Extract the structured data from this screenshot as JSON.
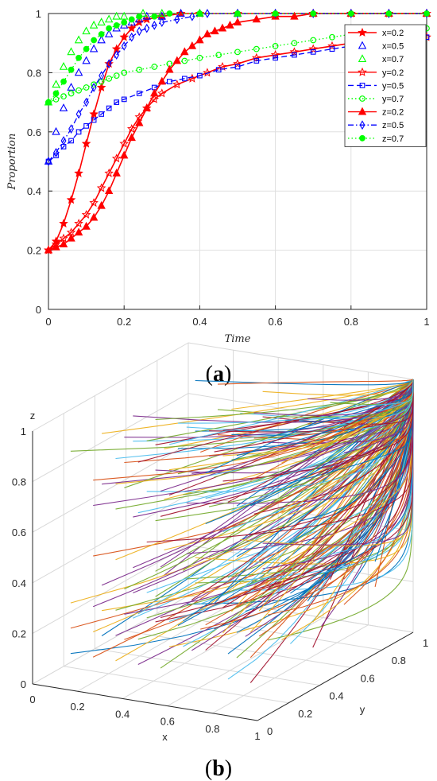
{
  "chart_data": [
    {
      "type": "line",
      "panel": "a",
      "xlabel": "Time",
      "ylabel": "Proportion",
      "xlim": [
        0,
        1
      ],
      "ylim": [
        0,
        1
      ],
      "xticks": [
        "0",
        "0.2",
        "0.4",
        "0.6",
        "0.8",
        "1"
      ],
      "yticks": [
        "0",
        "0.2",
        "0.4",
        "0.6",
        "0.8",
        "1"
      ],
      "grid": true,
      "legend_position": "top-right",
      "series": [
        {
          "name": "x=0.2",
          "color": "#ff0000",
          "line": "solid",
          "marker": "star-filled",
          "points": [
            [
              0,
              0.2
            ],
            [
              0.02,
              0.23
            ],
            [
              0.04,
              0.29
            ],
            [
              0.06,
              0.37
            ],
            [
              0.08,
              0.46
            ],
            [
              0.1,
              0.56
            ],
            [
              0.12,
              0.66
            ],
            [
              0.14,
              0.75
            ],
            [
              0.16,
              0.83
            ],
            [
              0.18,
              0.88
            ],
            [
              0.2,
              0.92
            ],
            [
              0.22,
              0.95
            ],
            [
              0.24,
              0.97
            ],
            [
              0.26,
              0.98
            ],
            [
              0.3,
              0.99
            ],
            [
              0.35,
              1.0
            ],
            [
              0.4,
              1.0
            ],
            [
              0.5,
              1.0
            ],
            [
              0.6,
              1.0
            ],
            [
              0.7,
              1.0
            ],
            [
              0.8,
              1.0
            ],
            [
              0.9,
              1.0
            ],
            [
              1.0,
              1.0
            ]
          ]
        },
        {
          "name": "x=0.5",
          "color": "#0000ff",
          "line": "none",
          "marker": "triangle-open",
          "points": [
            [
              0,
              0.5
            ],
            [
              0.02,
              0.6
            ],
            [
              0.04,
              0.68
            ],
            [
              0.06,
              0.75
            ],
            [
              0.08,
              0.8
            ],
            [
              0.1,
              0.84
            ],
            [
              0.12,
              0.88
            ],
            [
              0.14,
              0.91
            ],
            [
              0.16,
              0.93
            ],
            [
              0.18,
              0.95
            ],
            [
              0.2,
              0.96
            ],
            [
              0.22,
              0.97
            ],
            [
              0.24,
              0.98
            ],
            [
              0.26,
              0.99
            ],
            [
              0.3,
              0.99
            ],
            [
              0.35,
              1.0
            ],
            [
              0.4,
              1.0
            ],
            [
              0.5,
              1.0
            ],
            [
              0.6,
              1.0
            ],
            [
              0.7,
              1.0
            ],
            [
              0.8,
              1.0
            ],
            [
              0.9,
              1.0
            ],
            [
              1.0,
              1.0
            ]
          ]
        },
        {
          "name": "x=0.7",
          "color": "#00ff00",
          "line": "none",
          "marker": "triangle-open",
          "points": [
            [
              0,
              0.7
            ],
            [
              0.02,
              0.76
            ],
            [
              0.04,
              0.82
            ],
            [
              0.06,
              0.87
            ],
            [
              0.08,
              0.91
            ],
            [
              0.1,
              0.94
            ],
            [
              0.12,
              0.96
            ],
            [
              0.14,
              0.97
            ],
            [
              0.16,
              0.98
            ],
            [
              0.18,
              0.99
            ],
            [
              0.2,
              0.99
            ],
            [
              0.25,
              1.0
            ],
            [
              0.3,
              1.0
            ],
            [
              0.4,
              1.0
            ],
            [
              0.5,
              1.0
            ],
            [
              0.6,
              1.0
            ],
            [
              0.7,
              1.0
            ],
            [
              0.8,
              1.0
            ],
            [
              0.9,
              1.0
            ],
            [
              1.0,
              1.0
            ]
          ]
        },
        {
          "name": "y=0.2",
          "color": "#ff0000",
          "line": "solid",
          "marker": "star",
          "points": [
            [
              0,
              0.2
            ],
            [
              0.02,
              0.22
            ],
            [
              0.04,
              0.24
            ],
            [
              0.06,
              0.26
            ],
            [
              0.08,
              0.29
            ],
            [
              0.1,
              0.32
            ],
            [
              0.12,
              0.36
            ],
            [
              0.14,
              0.41
            ],
            [
              0.16,
              0.46
            ],
            [
              0.18,
              0.51
            ],
            [
              0.2,
              0.56
            ],
            [
              0.22,
              0.61
            ],
            [
              0.24,
              0.65
            ],
            [
              0.26,
              0.68
            ],
            [
              0.28,
              0.71
            ],
            [
              0.3,
              0.73
            ],
            [
              0.34,
              0.76
            ],
            [
              0.38,
              0.78
            ],
            [
              0.42,
              0.8
            ],
            [
              0.46,
              0.82
            ],
            [
              0.5,
              0.83
            ],
            [
              0.55,
              0.85
            ],
            [
              0.6,
              0.86
            ],
            [
              0.65,
              0.87
            ],
            [
              0.7,
              0.88
            ],
            [
              0.75,
              0.89
            ],
            [
              0.8,
              0.9
            ],
            [
              0.85,
              0.91
            ],
            [
              0.9,
              0.91
            ],
            [
              0.95,
              0.92
            ],
            [
              1.0,
              0.92
            ]
          ]
        },
        {
          "name": "y=0.5",
          "color": "#0000ff",
          "line": "dashed",
          "marker": "square-open",
          "points": [
            [
              0,
              0.5
            ],
            [
              0.02,
              0.52
            ],
            [
              0.04,
              0.55
            ],
            [
              0.06,
              0.57
            ],
            [
              0.08,
              0.6
            ],
            [
              0.1,
              0.62
            ],
            [
              0.12,
              0.64
            ],
            [
              0.14,
              0.66
            ],
            [
              0.16,
              0.68
            ],
            [
              0.18,
              0.7
            ],
            [
              0.2,
              0.71
            ],
            [
              0.24,
              0.73
            ],
            [
              0.28,
              0.75
            ],
            [
              0.32,
              0.77
            ],
            [
              0.36,
              0.78
            ],
            [
              0.4,
              0.79
            ],
            [
              0.45,
              0.81
            ],
            [
              0.5,
              0.82
            ],
            [
              0.55,
              0.84
            ],
            [
              0.6,
              0.85
            ],
            [
              0.65,
              0.86
            ],
            [
              0.7,
              0.87
            ],
            [
              0.75,
              0.88
            ],
            [
              0.8,
              0.89
            ],
            [
              0.85,
              0.9
            ],
            [
              0.9,
              0.91
            ],
            [
              0.95,
              0.92
            ],
            [
              1.0,
              0.92
            ]
          ]
        },
        {
          "name": "y=0.7",
          "color": "#00ff00",
          "line": "dotted",
          "marker": "circle-open",
          "points": [
            [
              0,
              0.7
            ],
            [
              0.02,
              0.71
            ],
            [
              0.04,
              0.72
            ],
            [
              0.06,
              0.73
            ],
            [
              0.08,
              0.74
            ],
            [
              0.1,
              0.75
            ],
            [
              0.12,
              0.76
            ],
            [
              0.14,
              0.77
            ],
            [
              0.16,
              0.78
            ],
            [
              0.18,
              0.79
            ],
            [
              0.2,
              0.8
            ],
            [
              0.24,
              0.81
            ],
            [
              0.28,
              0.82
            ],
            [
              0.32,
              0.83
            ],
            [
              0.36,
              0.84
            ],
            [
              0.4,
              0.85
            ],
            [
              0.45,
              0.86
            ],
            [
              0.5,
              0.87
            ],
            [
              0.55,
              0.88
            ],
            [
              0.6,
              0.89
            ],
            [
              0.65,
              0.9
            ],
            [
              0.7,
              0.91
            ],
            [
              0.75,
              0.92
            ],
            [
              0.8,
              0.93
            ],
            [
              0.85,
              0.94
            ],
            [
              0.9,
              0.94
            ],
            [
              0.95,
              0.95
            ],
            [
              1.0,
              0.95
            ]
          ]
        },
        {
          "name": "z=0.2",
          "color": "#ff0000",
          "line": "solid",
          "marker": "triangle-filled",
          "points": [
            [
              0,
              0.2
            ],
            [
              0.02,
              0.21
            ],
            [
              0.04,
              0.22
            ],
            [
              0.06,
              0.24
            ],
            [
              0.08,
              0.26
            ],
            [
              0.1,
              0.28
            ],
            [
              0.12,
              0.31
            ],
            [
              0.14,
              0.35
            ],
            [
              0.16,
              0.4
            ],
            [
              0.18,
              0.46
            ],
            [
              0.2,
              0.52
            ],
            [
              0.22,
              0.58
            ],
            [
              0.24,
              0.63
            ],
            [
              0.26,
              0.68
            ],
            [
              0.28,
              0.73
            ],
            [
              0.3,
              0.77
            ],
            [
              0.32,
              0.81
            ],
            [
              0.34,
              0.84
            ],
            [
              0.36,
              0.87
            ],
            [
              0.38,
              0.89
            ],
            [
              0.4,
              0.91
            ],
            [
              0.42,
              0.93
            ],
            [
              0.44,
              0.94
            ],
            [
              0.46,
              0.95
            ],
            [
              0.48,
              0.96
            ],
            [
              0.5,
              0.97
            ],
            [
              0.55,
              0.98
            ],
            [
              0.6,
              0.99
            ],
            [
              0.65,
              0.99
            ],
            [
              0.7,
              1.0
            ],
            [
              0.8,
              1.0
            ],
            [
              0.9,
              1.0
            ],
            [
              1.0,
              1.0
            ]
          ]
        },
        {
          "name": "z=0.5",
          "color": "#0000ff",
          "line": "dashdot",
          "marker": "diamond-open",
          "points": [
            [
              0,
              0.5
            ],
            [
              0.02,
              0.53
            ],
            [
              0.04,
              0.57
            ],
            [
              0.06,
              0.61
            ],
            [
              0.08,
              0.66
            ],
            [
              0.1,
              0.7
            ],
            [
              0.12,
              0.75
            ],
            [
              0.14,
              0.79
            ],
            [
              0.16,
              0.83
            ],
            [
              0.18,
              0.86
            ],
            [
              0.2,
              0.89
            ],
            [
              0.22,
              0.92
            ],
            [
              0.24,
              0.94
            ],
            [
              0.26,
              0.95
            ],
            [
              0.28,
              0.96
            ],
            [
              0.3,
              0.97
            ],
            [
              0.34,
              0.98
            ],
            [
              0.38,
              0.99
            ],
            [
              0.42,
              1.0
            ],
            [
              0.5,
              1.0
            ],
            [
              0.6,
              1.0
            ],
            [
              0.7,
              1.0
            ],
            [
              0.8,
              1.0
            ],
            [
              0.9,
              1.0
            ],
            [
              1.0,
              1.0
            ]
          ]
        },
        {
          "name": "z=0.7",
          "color": "#00ff00",
          "line": "dotted",
          "marker": "circle-filled",
          "points": [
            [
              0,
              0.7
            ],
            [
              0.02,
              0.73
            ],
            [
              0.04,
              0.77
            ],
            [
              0.06,
              0.81
            ],
            [
              0.08,
              0.85
            ],
            [
              0.1,
              0.88
            ],
            [
              0.12,
              0.91
            ],
            [
              0.14,
              0.93
            ],
            [
              0.16,
              0.95
            ],
            [
              0.18,
              0.96
            ],
            [
              0.2,
              0.97
            ],
            [
              0.22,
              0.98
            ],
            [
              0.24,
              0.99
            ],
            [
              0.28,
              0.99
            ],
            [
              0.32,
              1.0
            ],
            [
              0.4,
              1.0
            ],
            [
              0.5,
              1.0
            ],
            [
              0.6,
              1.0
            ],
            [
              0.7,
              1.0
            ],
            [
              0.8,
              1.0
            ],
            [
              0.9,
              1.0
            ],
            [
              1.0,
              1.0
            ]
          ]
        }
      ]
    },
    {
      "type": "line3d",
      "panel": "b",
      "xlabel": "x",
      "ylabel": "y",
      "zlabel": "z",
      "xlim": [
        0,
        1
      ],
      "ylim": [
        0,
        1
      ],
      "zlim": [
        0,
        1
      ],
      "xticks": [
        "0",
        "0.2",
        "0.4",
        "0.6",
        "0.8",
        "1"
      ],
      "yticks": [
        "0",
        "0.2",
        "0.4",
        "0.6",
        "0.8",
        "1"
      ],
      "zticks": [
        "0",
        "0.2",
        "0.4",
        "0.6",
        "0.8",
        "1"
      ],
      "grid": true,
      "description_of_series": "many evolutionary trajectories from a grid of initial (x, y, z) values, all converging to (1, 1, 1)",
      "start_x_values": [
        0.1,
        0.2,
        0.3,
        0.4,
        0.5,
        0.6,
        0.7,
        0.8,
        0.9
      ],
      "start_y_values": [
        0.1,
        0.3,
        0.5,
        0.7,
        0.9
      ],
      "start_z_values": [
        0.1,
        0.2,
        0.3,
        0.5,
        0.7,
        0.8,
        0.9
      ],
      "end_point": [
        1,
        1,
        1
      ],
      "colors": [
        "#0072bd",
        "#d95319",
        "#edb120",
        "#7e2f8e",
        "#77ac30",
        "#4dbeee",
        "#a2142f"
      ]
    }
  ],
  "captions": {
    "a": {
      "open": "(",
      "letter": "a",
      "close": ")"
    },
    "b": {
      "open": "(",
      "letter": "b",
      "close": ")"
    }
  }
}
